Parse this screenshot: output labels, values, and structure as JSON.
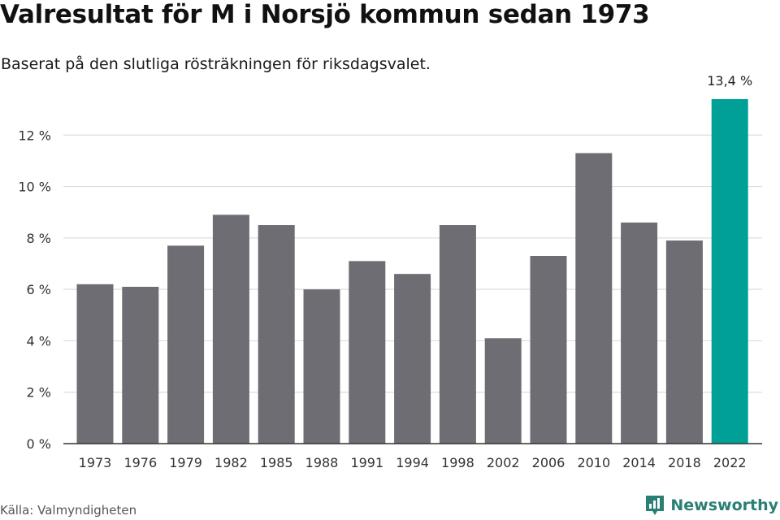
{
  "header": {
    "title": "Valresultat för M i Norsjö kommun sedan 1973",
    "subtitle": "Baserat på den slutliga rösträkningen för riksdagsvalet."
  },
  "footer": {
    "source": "Källa: Valmyndigheten",
    "brand_name": "Newsworthy",
    "brand_icon": "newsworthy-logo-icon"
  },
  "colors": {
    "bar": "#6e6d73",
    "highlight_bar": "#00a096",
    "grid": "#dddddd",
    "axis": "#333333",
    "brand": "#2a7f74"
  },
  "chart_data": {
    "type": "bar",
    "categories": [
      "1973",
      "1976",
      "1979",
      "1982",
      "1985",
      "1988",
      "1991",
      "1994",
      "1998",
      "2002",
      "2006",
      "2010",
      "2014",
      "2018",
      "2022"
    ],
    "values": [
      6.2,
      6.1,
      7.7,
      8.9,
      8.5,
      6.0,
      7.1,
      6.6,
      8.5,
      4.1,
      7.3,
      11.3,
      8.6,
      7.9,
      13.4
    ],
    "highlight_index": 14,
    "value_labels": {
      "14": "13,4 %"
    },
    "yticks": [
      0,
      2,
      4,
      6,
      8,
      10,
      12
    ],
    "ytick_labels": [
      "0 %",
      "2 %",
      "4 %",
      "6 %",
      "8 %",
      "10 %",
      "12 %"
    ],
    "ylim": [
      0,
      14
    ],
    "grid": true,
    "xlabel": "",
    "ylabel": ""
  }
}
